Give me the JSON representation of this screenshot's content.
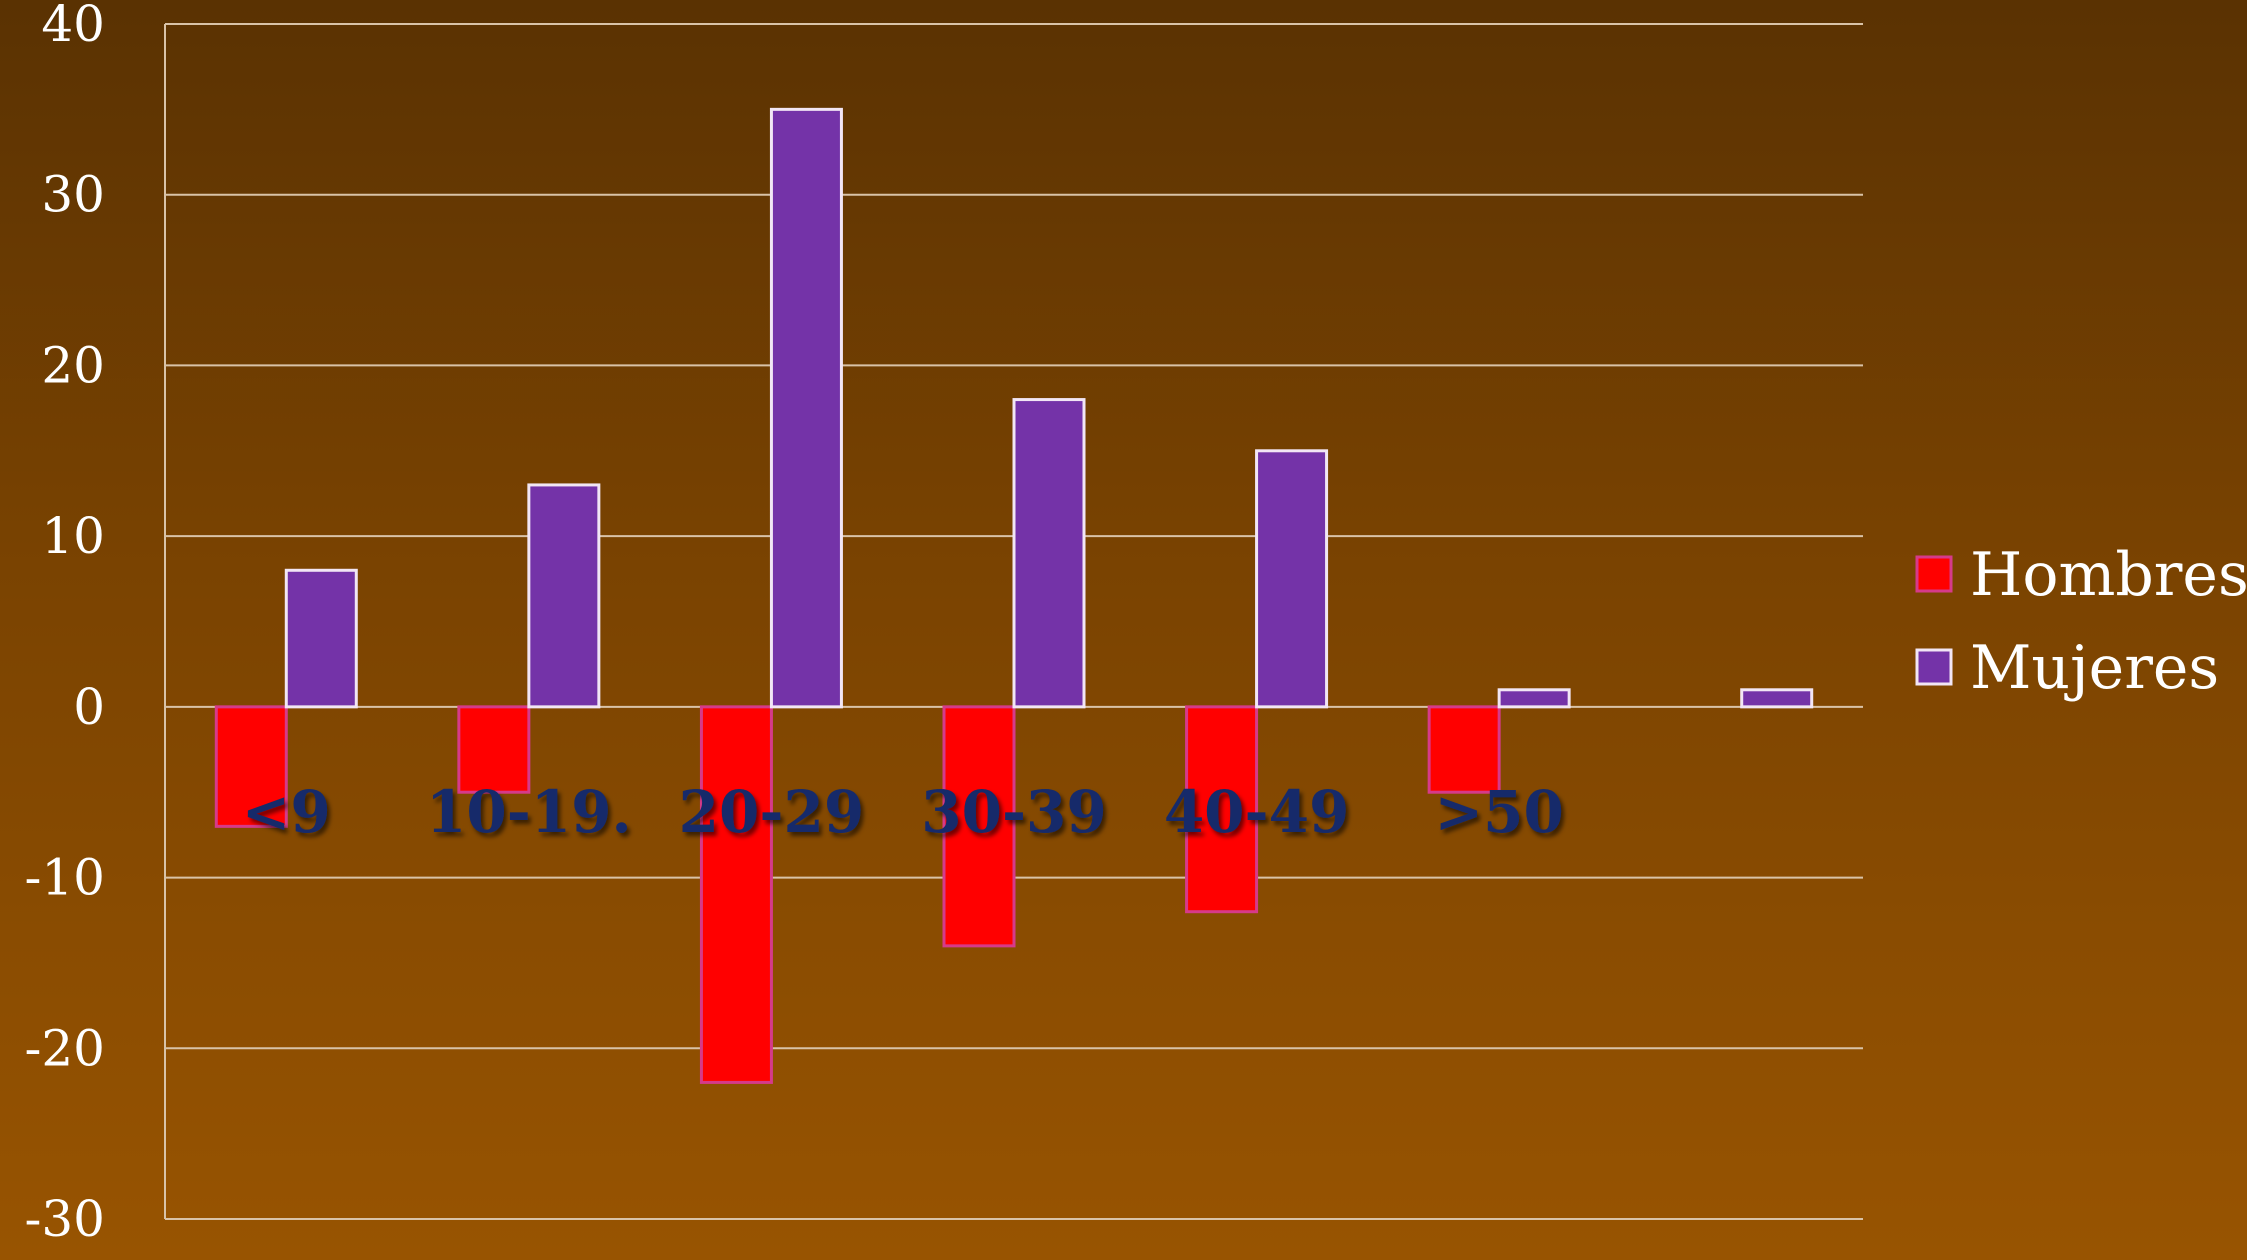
{
  "chart_data": {
    "type": "bar",
    "categories": [
      "<9",
      "10-19.",
      "20-29",
      "30-39",
      "40-49",
      ">50",
      ""
    ],
    "series": [
      {
        "name": "Hombres",
        "values": [
          -7,
          -5,
          -22,
          -14,
          -12,
          -5,
          null
        ],
        "color": "#ff0000"
      },
      {
        "name": "Mujeres",
        "values": [
          8,
          13,
          35,
          18,
          15,
          1,
          1
        ],
        "color": "#7433a8"
      }
    ],
    "title": "",
    "xlabel": "",
    "ylabel": "",
    "ylim": [
      -30,
      40
    ],
    "yticks": [
      "40",
      "30",
      "20",
      "10",
      "0",
      "-10",
      "-20",
      "-30"
    ],
    "grid": true,
    "legend_position": "right"
  }
}
